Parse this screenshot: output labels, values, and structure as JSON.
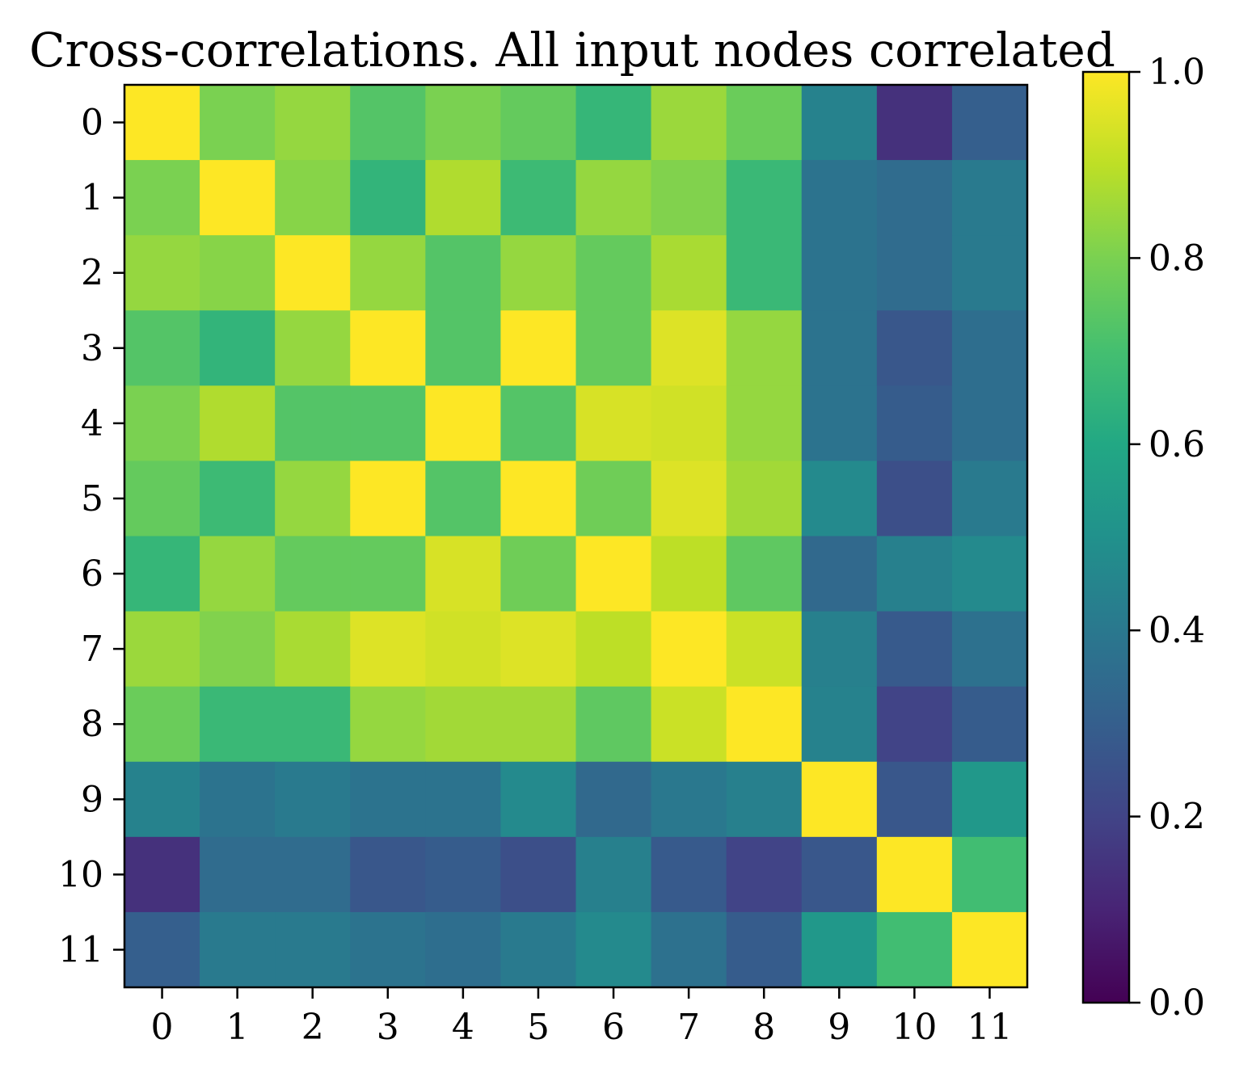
{
  "chart_data": {
    "type": "heatmap",
    "title": "Cross-correlations. All input nodes correlated",
    "xlabel": "",
    "ylabel": "",
    "x_categories": [
      "0",
      "1",
      "2",
      "3",
      "4",
      "5",
      "6",
      "7",
      "8",
      "9",
      "10",
      "11"
    ],
    "y_categories": [
      "0",
      "1",
      "2",
      "3",
      "4",
      "5",
      "6",
      "7",
      "8",
      "9",
      "10",
      "11"
    ],
    "values": [
      [
        1.0,
        0.8,
        0.84,
        0.73,
        0.8,
        0.76,
        0.66,
        0.85,
        0.77,
        0.44,
        0.14,
        0.3
      ],
      [
        0.8,
        1.0,
        0.82,
        0.65,
        0.88,
        0.68,
        0.84,
        0.81,
        0.67,
        0.38,
        0.35,
        0.41
      ],
      [
        0.84,
        0.82,
        1.0,
        0.84,
        0.73,
        0.84,
        0.76,
        0.87,
        0.67,
        0.38,
        0.35,
        0.41
      ],
      [
        0.73,
        0.65,
        0.84,
        1.0,
        0.73,
        1.0,
        0.76,
        0.95,
        0.84,
        0.38,
        0.27,
        0.36
      ],
      [
        0.8,
        0.88,
        0.73,
        0.73,
        1.0,
        0.73,
        0.94,
        0.93,
        0.84,
        0.38,
        0.29,
        0.36
      ],
      [
        0.76,
        0.68,
        0.84,
        1.0,
        0.73,
        1.0,
        0.78,
        0.95,
        0.86,
        0.47,
        0.24,
        0.41
      ],
      [
        0.66,
        0.84,
        0.76,
        0.76,
        0.94,
        0.78,
        1.0,
        0.9,
        0.75,
        0.34,
        0.43,
        0.47
      ],
      [
        0.85,
        0.81,
        0.87,
        0.95,
        0.93,
        0.95,
        0.9,
        1.0,
        0.92,
        0.43,
        0.28,
        0.37
      ],
      [
        0.77,
        0.67,
        0.67,
        0.84,
        0.86,
        0.86,
        0.75,
        0.92,
        1.0,
        0.44,
        0.2,
        0.29
      ],
      [
        0.44,
        0.38,
        0.41,
        0.38,
        0.38,
        0.47,
        0.34,
        0.4,
        0.43,
        1.0,
        0.27,
        0.53
      ],
      [
        0.14,
        0.35,
        0.35,
        0.27,
        0.29,
        0.24,
        0.43,
        0.28,
        0.2,
        0.27,
        1.0,
        0.69
      ],
      [
        0.3,
        0.41,
        0.41,
        0.38,
        0.36,
        0.41,
        0.47,
        0.37,
        0.29,
        0.53,
        0.69,
        1.0
      ]
    ],
    "colormap": "viridis",
    "vmin": 0.0,
    "vmax": 1.0,
    "colorbar_ticks": [
      "0.0",
      "0.2",
      "0.4",
      "0.6",
      "0.8",
      "1.0"
    ],
    "grid": false,
    "legend": "colorbar-right"
  }
}
